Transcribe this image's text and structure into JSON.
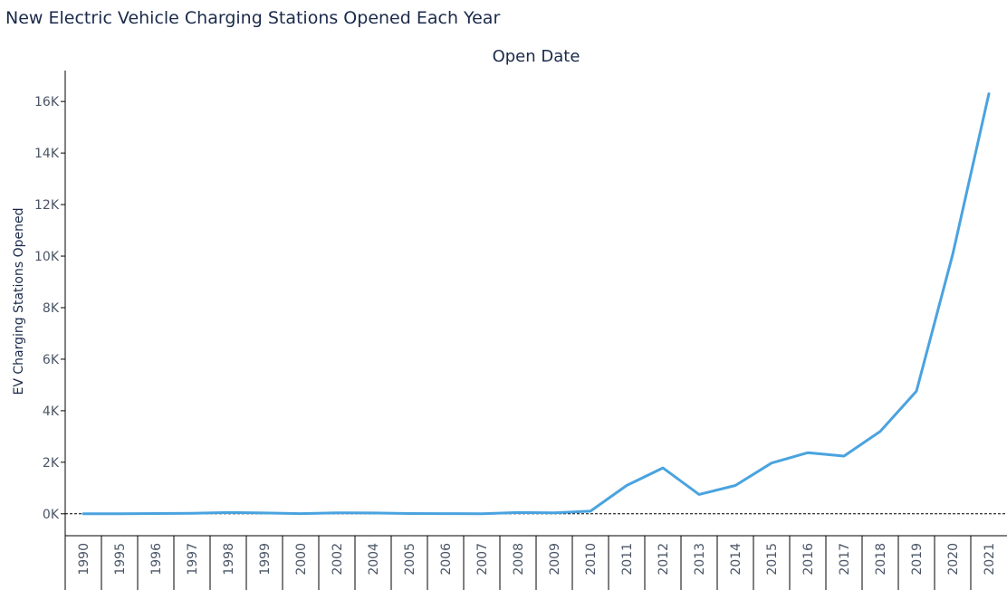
{
  "title": "New Electric Vehicle Charging Stations Opened Each Year",
  "colors": {
    "line": "#4aa3df",
    "axis": "#000000",
    "text": "#1b2a4a",
    "tick_text": "#4a5566"
  },
  "chart_data": {
    "type": "line",
    "title": "",
    "xlabel": "Open Date",
    "ylabel": "EV Charging Stations Opened",
    "categories": [
      "1990",
      "1995",
      "1996",
      "1997",
      "1998",
      "1999",
      "2000",
      "2002",
      "2004",
      "2005",
      "2006",
      "2007",
      "2008",
      "2009",
      "2010",
      "2011",
      "2012",
      "2013",
      "2014",
      "2015",
      "2016",
      "2017",
      "2018",
      "2019",
      "2020",
      "2021"
    ],
    "series": [
      {
        "values": [
          2,
          5,
          10,
          20,
          50,
          30,
          8,
          40,
          30,
          10,
          8,
          5,
          50,
          40,
          100,
          1100,
          1780,
          750,
          1100,
          1970,
          2370,
          2240,
          3200,
          4760,
          10060,
          16300
        ]
      }
    ],
    "ylim": [
      -850,
      17200
    ],
    "yticks": [
      0,
      2000,
      4000,
      6000,
      8000,
      10000,
      12000,
      14000,
      16000
    ],
    "ytick_labels": [
      "0K",
      "2K",
      "4K",
      "6K",
      "8K",
      "10K",
      "12K",
      "14K",
      "16K"
    ],
    "zero_line": true,
    "grid": false,
    "legend": "none"
  }
}
